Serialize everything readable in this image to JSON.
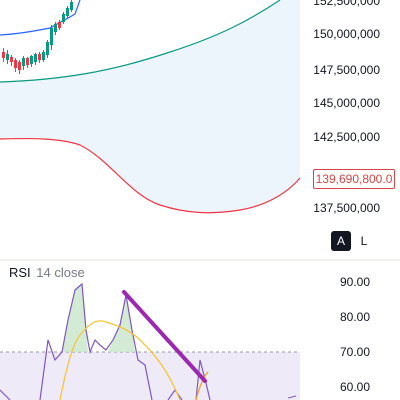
{
  "price_axis": {
    "labels": [
      "152,500,000",
      "150,000,000",
      "147,500,000",
      "145,000,000",
      "142,500,000",
      "137,500,000"
    ],
    "current_price": "139,690,800.0"
  },
  "scale_buttons": {
    "auto": "A",
    "log": "L"
  },
  "rsi": {
    "title": "RSI",
    "params": "14 close",
    "axis_labels": [
      "90.00",
      "80.00",
      "70.00",
      "60.00"
    ]
  },
  "colors": {
    "upper_band": "#089981",
    "lower_band": "#f23645",
    "band_fill": "#e3f2fd",
    "candle_up": "#089981",
    "candle_down": "#f23645",
    "rsi_line": "#7e57c2",
    "rsi_ma": "#f5c634",
    "divergence_line": "#9c27b0",
    "overbought_fill": "#ede7f6"
  }
}
